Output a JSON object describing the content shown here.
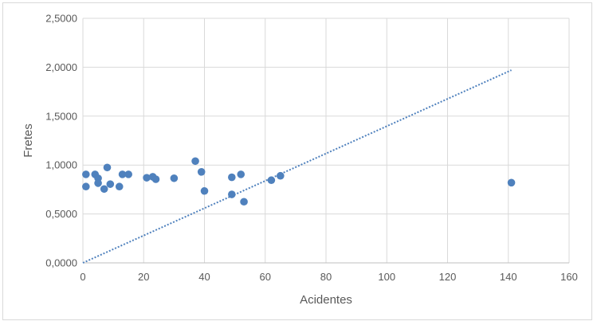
{
  "chart_data": {
    "type": "scatter",
    "title": "",
    "xlabel": "Acidentes",
    "ylabel": "Fretes",
    "xlim": [
      0,
      160
    ],
    "ylim": [
      0,
      2.5
    ],
    "x_ticks": [
      0,
      20,
      40,
      60,
      80,
      100,
      120,
      140,
      160
    ],
    "x_tick_labels": [
      "0",
      "20",
      "40",
      "60",
      "80",
      "100",
      "120",
      "140",
      "160"
    ],
    "y_ticks": [
      0,
      0.5,
      1.0,
      1.5,
      2.0,
      2.5
    ],
    "y_tick_labels": [
      "0,0000",
      "0,5000",
      "1,0000",
      "1,5000",
      "2,0000",
      "2,5000"
    ],
    "grid": true,
    "legend": "none",
    "marker_color": "#4f81bd",
    "trendline": {
      "type": "linear",
      "style": "dotted",
      "color": "#4f81bd",
      "x_range": [
        0,
        141
      ],
      "y_range": [
        0.0,
        1.97
      ]
    },
    "points": [
      {
        "x": 1,
        "y": 0.905
      },
      {
        "x": 1,
        "y": 0.78
      },
      {
        "x": 4,
        "y": 0.905
      },
      {
        "x": 5,
        "y": 0.865
      },
      {
        "x": 5,
        "y": 0.815
      },
      {
        "x": 7,
        "y": 0.755
      },
      {
        "x": 8,
        "y": 0.975
      },
      {
        "x": 9,
        "y": 0.805
      },
      {
        "x": 12,
        "y": 0.78
      },
      {
        "x": 13,
        "y": 0.905
      },
      {
        "x": 15,
        "y": 0.905
      },
      {
        "x": 21,
        "y": 0.87
      },
      {
        "x": 23,
        "y": 0.88
      },
      {
        "x": 24,
        "y": 0.855
      },
      {
        "x": 30,
        "y": 0.865
      },
      {
        "x": 37,
        "y": 1.04
      },
      {
        "x": 39,
        "y": 0.93
      },
      {
        "x": 40,
        "y": 0.735
      },
      {
        "x": 49,
        "y": 0.875
      },
      {
        "x": 49,
        "y": 0.7
      },
      {
        "x": 52,
        "y": 0.905
      },
      {
        "x": 53,
        "y": 0.625
      },
      {
        "x": 62,
        "y": 0.845
      },
      {
        "x": 65,
        "y": 0.89
      },
      {
        "x": 141,
        "y": 0.82
      }
    ]
  }
}
